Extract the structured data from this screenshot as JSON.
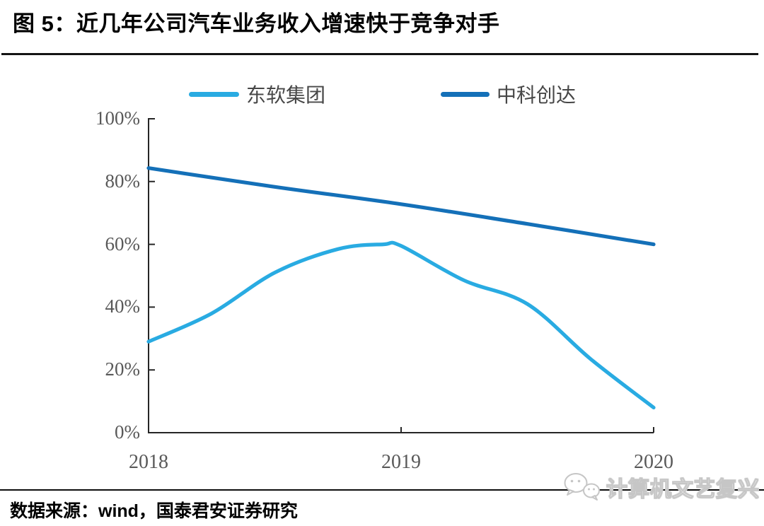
{
  "header": {
    "title": "图 5：近几年公司汽车业务收入增速快于竞争对手"
  },
  "footer": {
    "source_note": "数据来源：wind，国泰君安证券研究",
    "watermark_label": "计算机文艺复兴",
    "watermark_icon": "wechat-icon"
  },
  "colors": {
    "series_dongruan": "#29ABE2",
    "series_zhongke": "#1470B8",
    "axis": "#262626",
    "tick_label": "#595959",
    "title_rule": "#141414",
    "bottom_rule": "#0d0d0d",
    "watermark_gray": "#c6c6c6"
  },
  "chart_data": {
    "type": "line",
    "title": "图 5：近几年公司汽车业务收入增速快于竞争对手",
    "xlabel": "",
    "ylabel": "",
    "xlim": [
      2018,
      2020
    ],
    "ylim": [
      0,
      100
    ],
    "grid": false,
    "legend_position": "top",
    "x_ticks": [
      "2018",
      "2019",
      "2020"
    ],
    "y_ticks": [
      "0%",
      "20%",
      "40%",
      "60%",
      "80%",
      "100%"
    ],
    "y_tick_values": [
      0,
      20,
      40,
      60,
      80,
      100
    ],
    "series": [
      {
        "name": "东软集团",
        "color": "#29ABE2",
        "points": [
          [
            2018.0,
            29
          ],
          [
            2018.25,
            38
          ],
          [
            2018.5,
            51
          ],
          [
            2018.75,
            58.5
          ],
          [
            2018.93,
            60
          ],
          [
            2019.0,
            59.5
          ],
          [
            2019.25,
            48.5
          ],
          [
            2019.5,
            41
          ],
          [
            2019.75,
            23.5
          ],
          [
            2020.0,
            8
          ]
        ]
      },
      {
        "name": "中科创达",
        "color": "#1470B8",
        "points": [
          [
            2018.0,
            84.3
          ],
          [
            2018.5,
            78.3
          ],
          [
            2019.0,
            72.8
          ],
          [
            2019.5,
            66.5
          ],
          [
            2020.0,
            60
          ]
        ]
      }
    ]
  }
}
